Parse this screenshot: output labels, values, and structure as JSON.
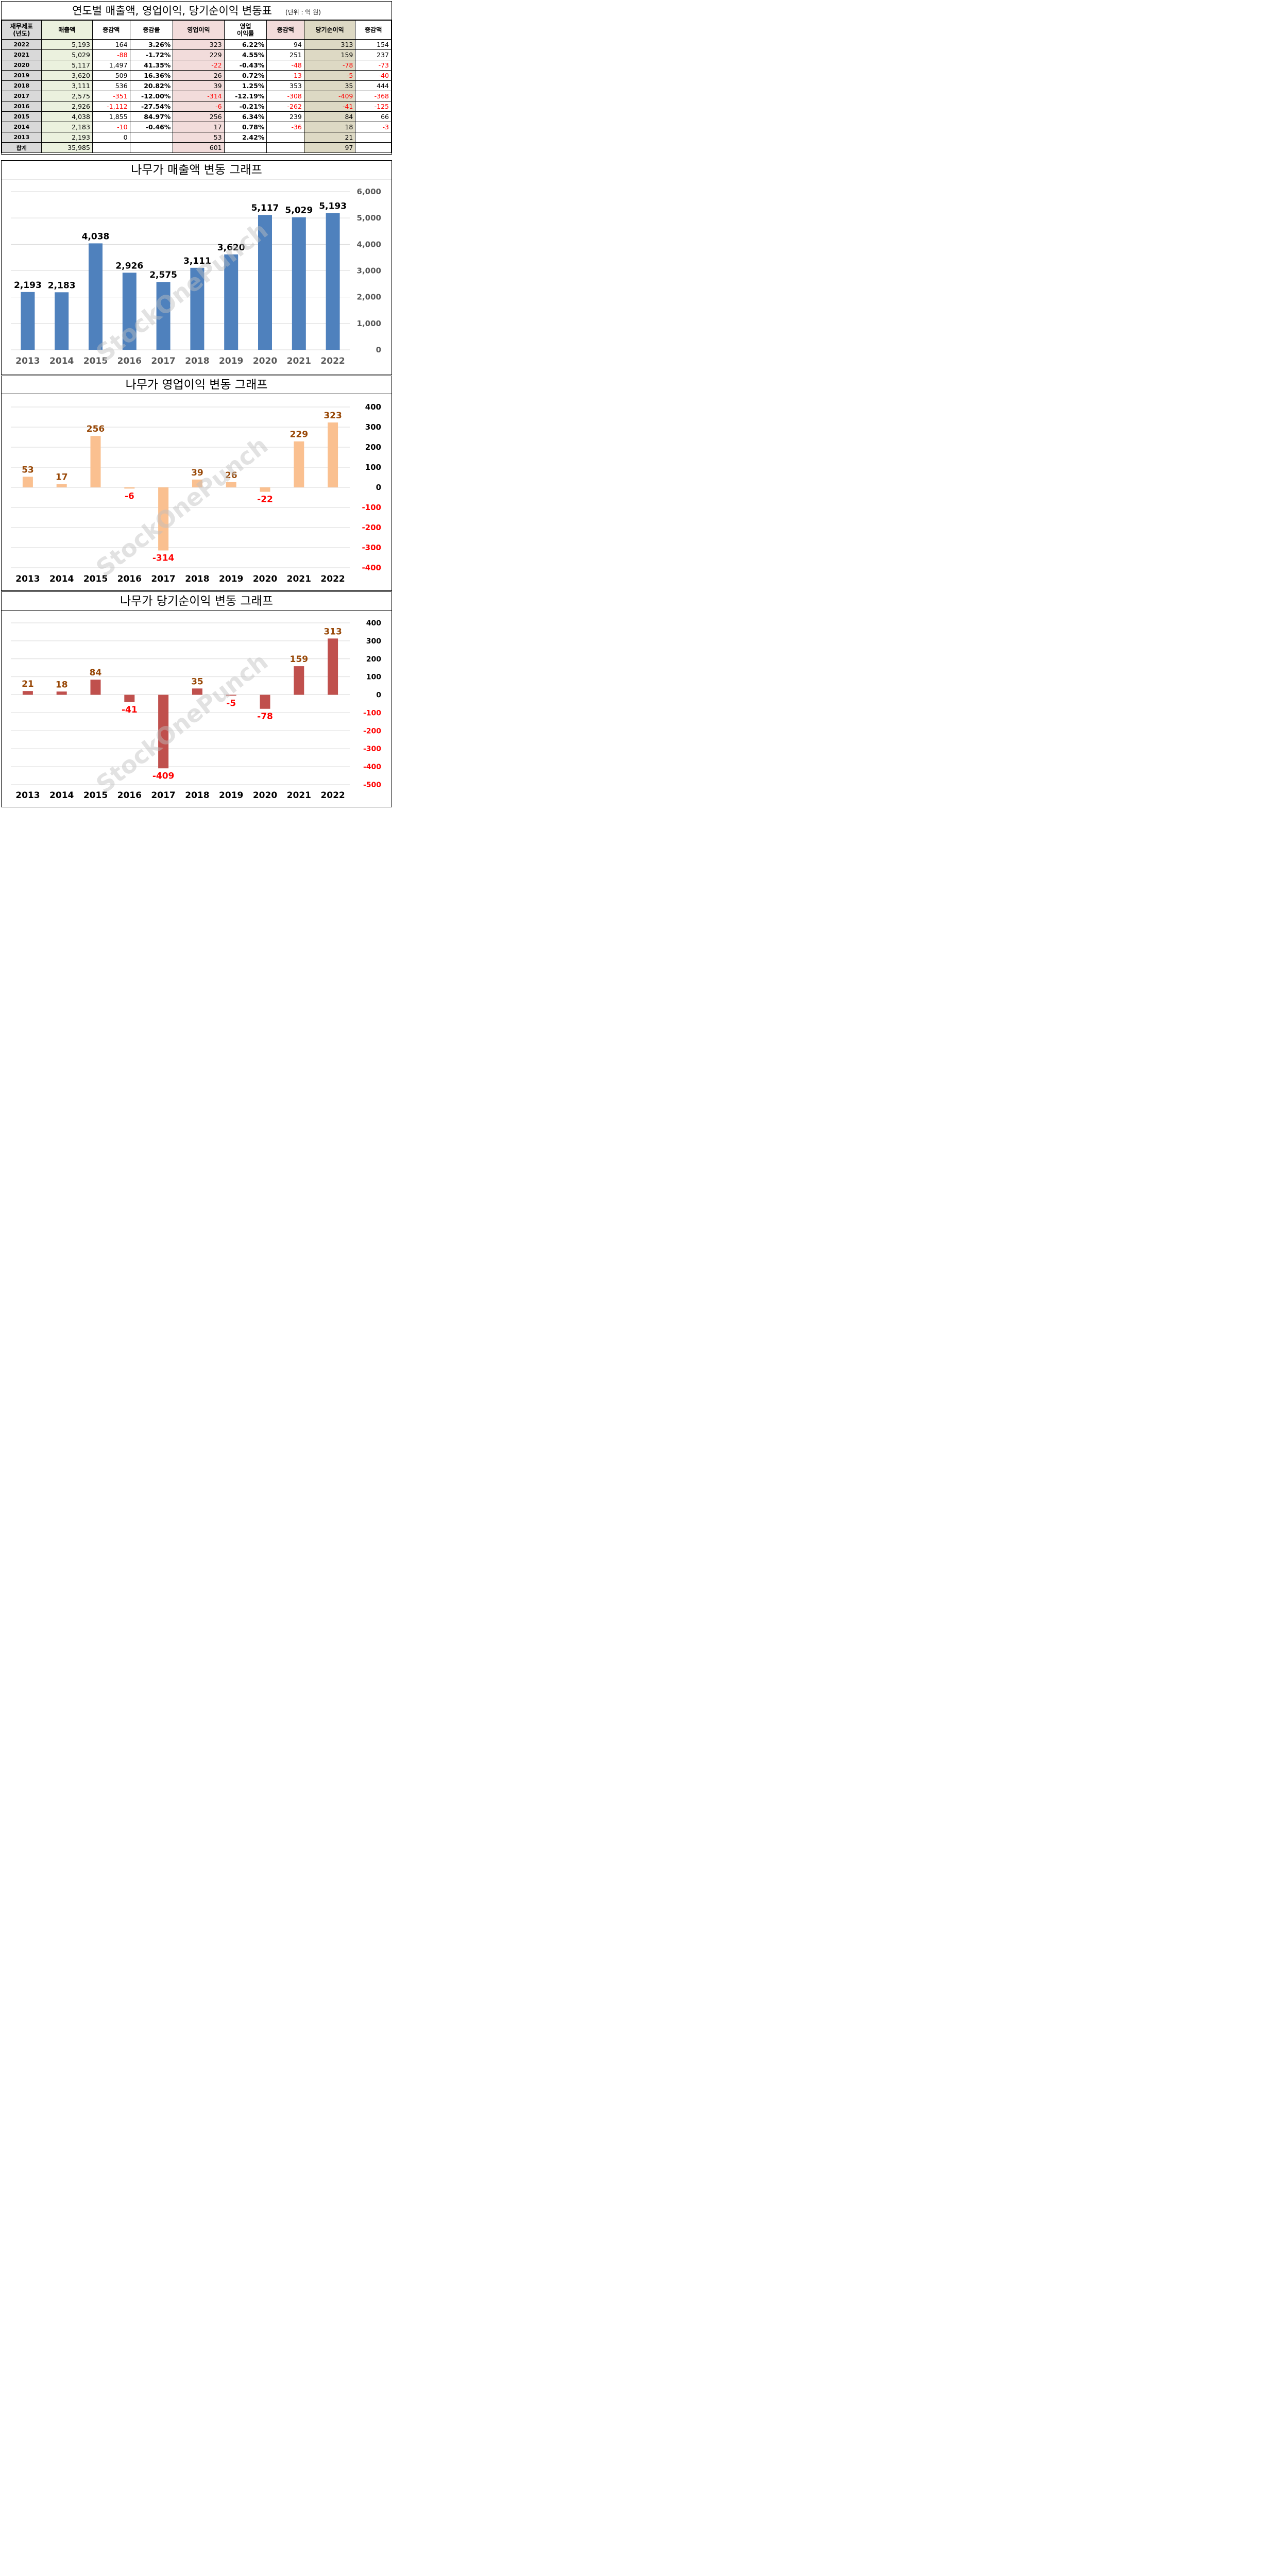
{
  "table": {
    "title": "연도별 매출액, 영업이익, 당기순이익 변동표",
    "unit": "(단위 : 억 원)",
    "headers": {
      "year": [
        "재무제표",
        "(년도)"
      ],
      "revenue": "매출액",
      "rev_change": "증감액",
      "rev_rate": "증감률",
      "op_profit": "영업이익",
      "op_margin": [
        "영업",
        "이익률"
      ],
      "op_change": "증감액",
      "net_profit": "당기순이익",
      "net_change": "증감액"
    },
    "rows": [
      {
        "year": "2022",
        "revenue": "5,193",
        "rev_change": "164",
        "rev_rate": "3.26%",
        "op_profit": "323",
        "op_margin": "6.22%",
        "op_change": "94",
        "net_profit": "313",
        "net_change": "154"
      },
      {
        "year": "2021",
        "revenue": "5,029",
        "rev_change": "-88",
        "rev_rate": "-1.72%",
        "op_profit": "229",
        "op_margin": "4.55%",
        "op_change": "251",
        "net_profit": "159",
        "net_change": "237"
      },
      {
        "year": "2020",
        "revenue": "5,117",
        "rev_change": "1,497",
        "rev_rate": "41.35%",
        "op_profit": "-22",
        "op_margin": "-0.43%",
        "op_change": "-48",
        "net_profit": "-78",
        "net_change": "-73"
      },
      {
        "year": "2019",
        "revenue": "3,620",
        "rev_change": "509",
        "rev_rate": "16.36%",
        "op_profit": "26",
        "op_margin": "0.72%",
        "op_change": "-13",
        "net_profit": "-5",
        "net_change": "-40"
      },
      {
        "year": "2018",
        "revenue": "3,111",
        "rev_change": "536",
        "rev_rate": "20.82%",
        "op_profit": "39",
        "op_margin": "1.25%",
        "op_change": "353",
        "net_profit": "35",
        "net_change": "444"
      },
      {
        "year": "2017",
        "revenue": "2,575",
        "rev_change": "-351",
        "rev_rate": "-12.00%",
        "op_profit": "-314",
        "op_margin": "-12.19%",
        "op_change": "-308",
        "net_profit": "-409",
        "net_change": "-368"
      },
      {
        "year": "2016",
        "revenue": "2,926",
        "rev_change": "-1,112",
        "rev_rate": "-27.54%",
        "op_profit": "-6",
        "op_margin": "-0.21%",
        "op_change": "-262",
        "net_profit": "-41",
        "net_change": "-125"
      },
      {
        "year": "2015",
        "revenue": "4,038",
        "rev_change": "1,855",
        "rev_rate": "84.97%",
        "op_profit": "256",
        "op_margin": "6.34%",
        "op_change": "239",
        "net_profit": "84",
        "net_change": "66"
      },
      {
        "year": "2014",
        "revenue": "2,183",
        "rev_change": "-10",
        "rev_rate": "-0.46%",
        "op_profit": "17",
        "op_margin": "0.78%",
        "op_change": "-36",
        "net_profit": "18",
        "net_change": "-3"
      },
      {
        "year": "2013",
        "revenue": "2,193",
        "rev_change": "0",
        "rev_rate": "",
        "op_profit": "53",
        "op_margin": "2.42%",
        "op_change": "",
        "net_profit": "21",
        "net_change": ""
      }
    ],
    "total": {
      "year": "합계",
      "revenue": "35,985",
      "op_profit": "601",
      "net_profit": "97"
    }
  },
  "watermark": "StockOnePunch",
  "chart_data": [
    {
      "type": "bar",
      "title": "나무가 매출액 변동 그래프",
      "categories": [
        "2013",
        "2014",
        "2015",
        "2016",
        "2017",
        "2018",
        "2019",
        "2020",
        "2021",
        "2022"
      ],
      "values": [
        2193,
        2183,
        4038,
        2926,
        2575,
        3111,
        3620,
        5117,
        5029,
        5193
      ],
      "ylim": [
        0,
        6000
      ],
      "yticks": [
        0,
        1000,
        2000,
        3000,
        4000,
        5000,
        6000
      ],
      "ytick_labels": [
        "0",
        "1,000",
        "2,000",
        "3,000",
        "4,000",
        "5,000",
        "6,000"
      ],
      "data_labels": [
        "2,193",
        "2,183",
        "4,038",
        "2,926",
        "2,575",
        "3,111",
        "3,620",
        "5,117",
        "5,029",
        "5,193"
      ],
      "grid": true,
      "colors": {
        "bar": "#4f81bd",
        "label": "#000000",
        "tick": "#595959",
        "negative": "#ff0000"
      }
    },
    {
      "type": "bar",
      "title": "나무가 영업이익 변동 그래프",
      "categories": [
        "2013",
        "2014",
        "2015",
        "2016",
        "2017",
        "2018",
        "2019",
        "2020",
        "2021",
        "2022"
      ],
      "values": [
        53,
        17,
        256,
        -6,
        -314,
        39,
        26,
        -22,
        229,
        323
      ],
      "ylim": [
        -400,
        400
      ],
      "yticks": [
        -400,
        -300,
        -200,
        -100,
        0,
        100,
        200,
        300,
        400
      ],
      "ytick_labels": [
        "-400",
        "-300",
        "-200",
        "-100",
        "0",
        "100",
        "200",
        "300",
        "400"
      ],
      "data_labels": [
        "53",
        "17",
        "256",
        "-6",
        "-314",
        "39",
        "26",
        "-22",
        "229",
        "323"
      ],
      "grid": true,
      "colors": {
        "bar": "#fac090",
        "label": "#984807",
        "tick": "#000000",
        "negative": "#ff0000"
      }
    },
    {
      "type": "bar",
      "title": "나무가 당기순이익 변동 그래프",
      "categories": [
        "2013",
        "2014",
        "2015",
        "2016",
        "2017",
        "2018",
        "2019",
        "2020",
        "2021",
        "2022"
      ],
      "values": [
        21,
        18,
        84,
        -41,
        -409,
        35,
        -5,
        -78,
        159,
        313
      ],
      "ylim": [
        -500,
        400
      ],
      "yticks": [
        -500,
        -400,
        -300,
        -200,
        -100,
        0,
        100,
        200,
        300,
        400
      ],
      "ytick_labels": [
        "-500",
        "-400",
        "-300",
        "-200",
        "-100",
        "0",
        "100",
        "200",
        "300",
        "400"
      ],
      "data_labels": [
        "21",
        "18",
        "84",
        "-41",
        "-409",
        "35",
        "-5",
        "-78",
        "159",
        "313"
      ],
      "grid": true,
      "colors": {
        "bar": "#c0504d",
        "label": "#984807",
        "tick": "#000000",
        "negative": "#ff0000"
      }
    }
  ]
}
